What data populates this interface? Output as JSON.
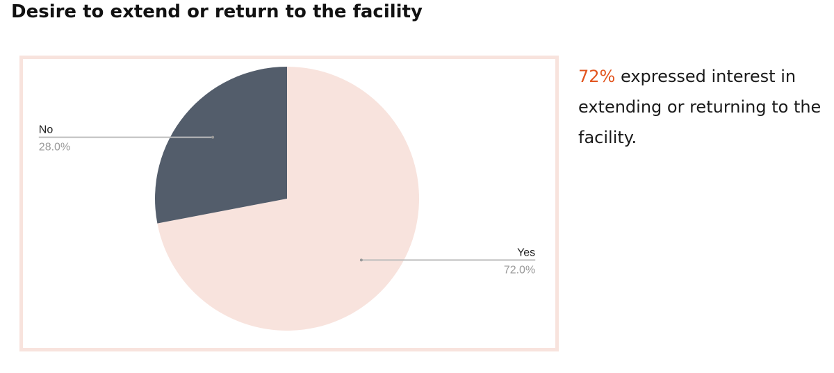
{
  "page_title": "Desire to extend or return to the facility",
  "summary": {
    "highlight": "72%",
    "text": " expressed interest in extending or returning to the facility."
  },
  "colors": {
    "yes_slice": "#f8e3dd",
    "no_slice": "#535d6b",
    "frame_border": "#f8e3dd",
    "highlight": "#e2551f",
    "label_text": "#222222",
    "percent_text": "#9a9a9a",
    "leader_line": "#bdbdbd"
  },
  "chart_data": {
    "type": "pie",
    "title": "",
    "slices": [
      {
        "label": "Yes",
        "value": 72.0,
        "percent_label": "72.0%",
        "color": "#f8e3dd"
      },
      {
        "label": "No",
        "value": 28.0,
        "percent_label": "28.0%",
        "color": "#535d6b"
      }
    ],
    "start_angle": "12 o'clock",
    "direction": "clockwise",
    "legend": "none",
    "labels": "outside with leader lines"
  }
}
